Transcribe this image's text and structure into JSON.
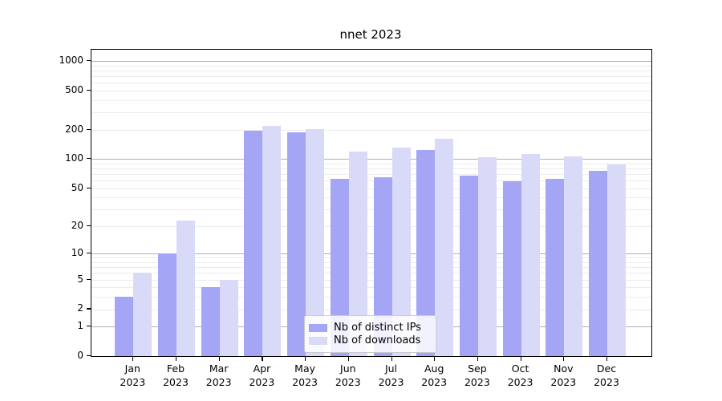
{
  "title": "nnet 2023",
  "chart_data": {
    "type": "bar",
    "title": "nnet 2023",
    "xlabel": "",
    "ylabel": "",
    "axis_scale": "log10(x+1)",
    "ylim": [
      0,
      1300
    ],
    "grid": "horizontal, log minor + major decades",
    "legend_position": "lower center",
    "y_ticks": [
      0,
      1,
      2,
      5,
      10,
      20,
      50,
      100,
      200,
      500,
      1000
    ],
    "categories": [
      {
        "month": "Jan",
        "year": "2023"
      },
      {
        "month": "Feb",
        "year": "2023"
      },
      {
        "month": "Mar",
        "year": "2023"
      },
      {
        "month": "Apr",
        "year": "2023"
      },
      {
        "month": "May",
        "year": "2023"
      },
      {
        "month": "Jun",
        "year": "2023"
      },
      {
        "month": "Jul",
        "year": "2023"
      },
      {
        "month": "Aug",
        "year": "2023"
      },
      {
        "month": "Sep",
        "year": "2023"
      },
      {
        "month": "Oct",
        "year": "2023"
      },
      {
        "month": "Nov",
        "year": "2023"
      },
      {
        "month": "Dec",
        "year": "2023"
      }
    ],
    "series": [
      {
        "name": "Nb of distinct IPs",
        "color": "#a5a5f6",
        "values": [
          3,
          10,
          4,
          193,
          188,
          62,
          65,
          124,
          67,
          59,
          62,
          75
        ]
      },
      {
        "name": "Nb of downloads",
        "color": "#d9d9f8",
        "values": [
          6,
          23,
          5,
          218,
          202,
          120,
          130,
          160,
          105,
          113,
          107,
          88
        ]
      }
    ]
  },
  "legend": {
    "items": [
      {
        "label": "Nb of distinct IPs",
        "color": "#a5a5f6"
      },
      {
        "label": "Nb of downloads",
        "color": "#d9d9f8"
      }
    ]
  }
}
